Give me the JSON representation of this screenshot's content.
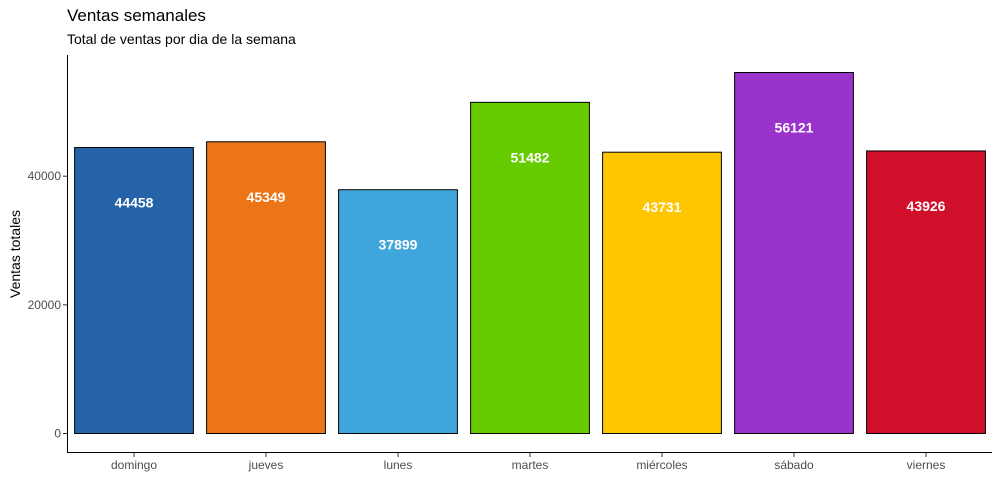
{
  "chart_data": {
    "type": "bar",
    "title": "Ventas semanales",
    "subtitle": "Total de ventas por dia de la semana",
    "xlabel": "",
    "ylabel": "Ventas totales",
    "categories": [
      "domingo",
      "jueves",
      "lunes",
      "martes",
      "miércoles",
      "sábado",
      "viernes"
    ],
    "values": [
      44458,
      45349,
      37899,
      51482,
      43731,
      56121,
      43926
    ],
    "colors": [
      "#2463A8",
      "#EB7517",
      "#3FA6DB",
      "#66CC00",
      "#FFC600",
      "#9933CC",
      "#D0102A"
    ],
    "yticks": [
      0,
      20000,
      40000
    ],
    "ylim": [
      0,
      56121
    ],
    "grid": false,
    "legend": "none"
  }
}
